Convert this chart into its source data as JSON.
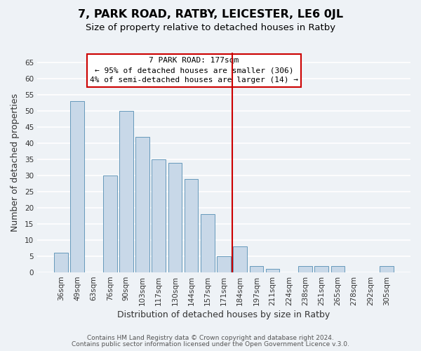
{
  "title": "7, PARK ROAD, RATBY, LEICESTER, LE6 0JL",
  "subtitle": "Size of property relative to detached houses in Ratby",
  "xlabel": "Distribution of detached houses by size in Ratby",
  "ylabel": "Number of detached properties",
  "categories": [
    "36sqm",
    "49sqm",
    "63sqm",
    "76sqm",
    "90sqm",
    "103sqm",
    "117sqm",
    "130sqm",
    "144sqm",
    "157sqm",
    "171sqm",
    "184sqm",
    "197sqm",
    "211sqm",
    "224sqm",
    "238sqm",
    "251sqm",
    "265sqm",
    "278sqm",
    "292sqm",
    "305sqm"
  ],
  "values": [
    6,
    53,
    0,
    30,
    50,
    42,
    35,
    34,
    29,
    18,
    5,
    8,
    2,
    1,
    0,
    2,
    2,
    2,
    0,
    0,
    2
  ],
  "bar_color": "#c8d8e8",
  "bar_edge_color": "#6699bb",
  "vline_x_index": 11,
  "vline_color": "#cc0000",
  "annotation_title": "7 PARK ROAD: 177sqm",
  "annotation_line1": "← 95% of detached houses are smaller (306)",
  "annotation_line2": "4% of semi-detached houses are larger (14) →",
  "ylim": [
    0,
    68
  ],
  "yticks": [
    0,
    5,
    10,
    15,
    20,
    25,
    30,
    35,
    40,
    45,
    50,
    55,
    60,
    65
  ],
  "footer1": "Contains HM Land Registry data © Crown copyright and database right 2024.",
  "footer2": "Contains public sector information licensed under the Open Government Licence v.3.0.",
  "bg_color": "#eef2f6",
  "grid_color": "#ffffff",
  "title_fontsize": 11.5,
  "subtitle_fontsize": 9.5,
  "axis_label_fontsize": 9,
  "tick_fontsize": 7.5,
  "footer_fontsize": 6.5
}
